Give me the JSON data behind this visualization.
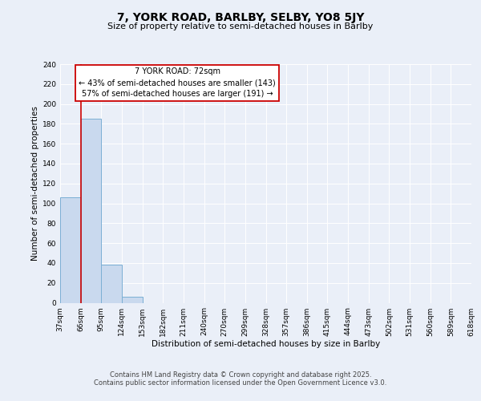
{
  "title": "7, YORK ROAD, BARLBY, SELBY, YO8 5JY",
  "subtitle": "Size of property relative to semi-detached houses in Barlby",
  "xlabel": "Distribution of semi-detached houses by size in Barlby",
  "ylabel": "Number of semi-detached properties",
  "bins": [
    "37sqm",
    "66sqm",
    "95sqm",
    "124sqm",
    "153sqm",
    "182sqm",
    "211sqm",
    "240sqm",
    "270sqm",
    "299sqm",
    "328sqm",
    "357sqm",
    "386sqm",
    "415sqm",
    "444sqm",
    "473sqm",
    "502sqm",
    "531sqm",
    "560sqm",
    "589sqm",
    "618sqm"
  ],
  "bar_values": [
    106,
    185,
    38,
    6,
    0,
    0,
    0,
    0,
    0,
    0,
    0,
    0,
    0,
    0,
    0,
    0,
    0,
    0,
    0,
    0
  ],
  "bar_color": "#c9d9ee",
  "bar_edge_color": "#7bafd4",
  "property_line_x": 1,
  "property_line_label": "7 YORK ROAD: 72sqm",
  "annotation_line1": "← 43% of semi-detached houses are smaller (143)",
  "annotation_line2": "57% of semi-detached houses are larger (191) →",
  "red_line_color": "#cc0000",
  "ylim": [
    0,
    240
  ],
  "yticks": [
    0,
    20,
    40,
    60,
    80,
    100,
    120,
    140,
    160,
    180,
    200,
    220,
    240
  ],
  "background_color": "#eaeff8",
  "plot_bg_color": "#eaeff8",
  "grid_color": "#ffffff",
  "footer_line1": "Contains HM Land Registry data © Crown copyright and database right 2025.",
  "footer_line2": "Contains public sector information licensed under the Open Government Licence v3.0.",
  "annotation_box_color": "#ffffff",
  "annotation_box_edge": "#cc0000",
  "title_fontsize": 10,
  "subtitle_fontsize": 8,
  "tick_fontsize": 6.5,
  "label_fontsize": 7.5,
  "annotation_fontsize": 7,
  "footer_fontsize": 6
}
